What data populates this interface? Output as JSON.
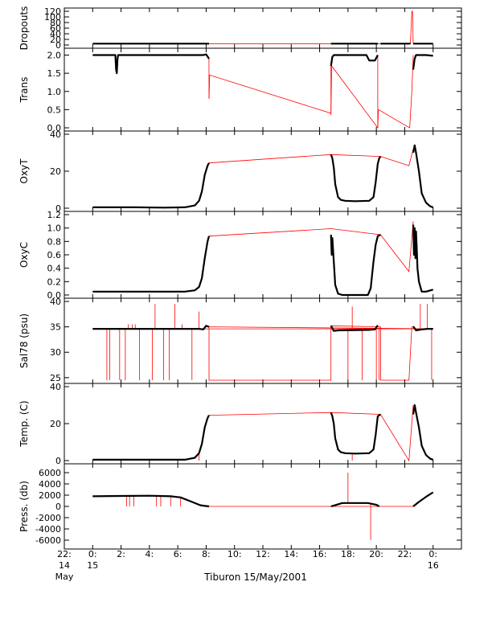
{
  "chart_data": {
    "type": "line",
    "xlabel": "Tiburon 15/May/2001",
    "x_unit": "hours relative to 00:00 15 May 2001",
    "x_range": [
      -2,
      26
    ],
    "x_ticks": [
      {
        "x": -2,
        "label": [
          "22:",
          "14",
          "May"
        ]
      },
      {
        "x": 0,
        "label": [
          "0:",
          "15"
        ]
      },
      {
        "x": 2,
        "label": [
          "2:"
        ]
      },
      {
        "x": 4,
        "label": [
          "4:"
        ]
      },
      {
        "x": 6,
        "label": [
          "6:"
        ]
      },
      {
        "x": 8,
        "label": [
          "8:"
        ]
      },
      {
        "x": 10,
        "label": [
          "10:"
        ]
      },
      {
        "x": 12,
        "label": [
          "12:"
        ]
      },
      {
        "x": 14,
        "label": [
          "14:"
        ]
      },
      {
        "x": 16,
        "label": [
          "16:"
        ]
      },
      {
        "x": 18,
        "label": [
          "18:"
        ]
      },
      {
        "x": 20,
        "label": [
          "20:"
        ]
      },
      {
        "x": 22,
        "label": [
          "22:"
        ]
      },
      {
        "x": 24,
        "label": [
          "0:",
          "16"
        ]
      }
    ],
    "colors": {
      "data": "#000000",
      "gap_lines": "#ff0000"
    },
    "panels": [
      {
        "name": "dropouts",
        "ylabel": "Dropouts",
        "ylim": [
          0,
          120
        ],
        "ytick_labels": [
          "0",
          "20",
          "40",
          "60",
          "80",
          "100",
          "120"
        ],
        "segments": [
          {
            "x": [
              0,
              8.2
            ],
            "y": [
              5,
              5
            ]
          },
          {
            "x": [
              16.8,
              20.1
            ],
            "y": [
              5,
              5
            ]
          },
          {
            "x": [
              20.3,
              22.4
            ],
            "y": [
              5,
              5
            ]
          },
          {
            "x": [
              22.6,
              24
            ],
            "y": [
              5,
              5
            ]
          }
        ],
        "red_path": {
          "x": [
            8.2,
            16.8,
            20.1,
            20.3,
            22.4,
            22.5,
            22.55,
            22.6
          ],
          "y": [
            5,
            5,
            5,
            5,
            5,
            120,
            120,
            5
          ]
        },
        "spikes": []
      },
      {
        "name": "trans",
        "ylabel": "Trans",
        "ylim": [
          0,
          2.1
        ],
        "ytick_labels": [
          "0.0",
          "0.5",
          "1.0",
          "1.5",
          "2.0"
        ],
        "segments": [
          {
            "x": [
              0,
              1.6,
              1.65,
              1.7,
              1.75,
              1.8,
              7.8,
              8.0,
              8.2
            ],
            "y": [
              2.0,
              2.0,
              1.6,
              1.5,
              1.9,
              2.0,
              2.0,
              2.02,
              1.9
            ]
          },
          {
            "x": [
              16.8,
              16.9,
              17.0,
              19.3,
              19.5,
              19.9,
              20.1
            ],
            "y": [
              1.7,
              1.95,
              2.0,
              2.0,
              1.85,
              1.85,
              2.0
            ]
          },
          {
            "x": [
              22.6,
              22.7,
              22.8,
              23.5,
              24.0
            ],
            "y": [
              1.6,
              1.9,
              2.0,
              2.0,
              1.98
            ]
          }
        ],
        "red_path": {
          "x": [
            8.2,
            8.25,
            16.8,
            16.85,
            20.1,
            20.15,
            22.35,
            22.5,
            22.6
          ],
          "y": [
            0.8,
            1.45,
            0.4,
            1.7,
            0.0,
            0.5,
            -0.1,
            1.0,
            2.0
          ]
        },
        "spikes": [
          {
            "x": 8.2,
            "y0": 1.9,
            "y1": 0.8
          },
          {
            "x": 16.8,
            "y0": 1.7,
            "y1": 0.35
          },
          {
            "x": 20.1,
            "y0": 2.0,
            "y1": 0.0
          }
        ]
      },
      {
        "name": "oxyt",
        "ylabel": "OxyT",
        "ylim": [
          0,
          40
        ],
        "ytick_labels": [
          "0",
          "20",
          "40"
        ],
        "segments": [
          {
            "x": [
              0,
              3,
              5,
              6.5,
              7.2,
              7.5,
              7.7,
              7.9,
              8.1,
              8.2
            ],
            "y": [
              0.5,
              0.5,
              0.3,
              0.5,
              1.5,
              4,
              9,
              18,
              23,
              24.5
            ]
          },
          {
            "x": [
              16.8,
              16.9,
              17.0,
              17.1,
              17.3,
              17.5,
              17.8,
              18.5,
              19.5,
              19.8,
              19.95,
              20.1,
              20.2,
              20.3
            ],
            "y": [
              29,
              27,
              22,
              13,
              6,
              4.5,
              4,
              3.8,
              4,
              6,
              14,
              24,
              27,
              28
            ]
          },
          {
            "x": [
              22.6,
              22.7,
              22.8,
              23.0,
              23.2,
              23.5,
              23.8,
              24.0
            ],
            "y": [
              30,
              34,
              30,
              20,
              8,
              3,
              1,
              0.5
            ]
          }
        ],
        "red_path": {
          "x": [
            8.2,
            16.8,
            20.3,
            22.3,
            22.6
          ],
          "y": [
            24.5,
            29,
            28,
            23,
            32
          ]
        },
        "spikes": []
      },
      {
        "name": "oxyc",
        "ylabel": "OxyC",
        "ylim": [
          0,
          1.2
        ],
        "ytick_labels": [
          "0.0",
          "0.2",
          "0.4",
          "0.6",
          "0.8",
          "1.0",
          "1.2"
        ],
        "segments": [
          {
            "x": [
              0,
              3,
              6.5,
              7.2,
              7.5,
              7.7,
              7.9,
              8.1,
              8.2
            ],
            "y": [
              0.05,
              0.05,
              0.05,
              0.07,
              0.12,
              0.25,
              0.55,
              0.8,
              0.88
            ]
          },
          {
            "x": [
              16.8,
              16.85,
              16.9,
              17.0,
              17.1,
              17.3,
              17.6,
              19.4,
              19.6,
              19.8,
              19.95,
              20.1,
              20.3
            ],
            "y": [
              0.9,
              0.6,
              0.85,
              0.5,
              0.15,
              0.02,
              0.0,
              0.0,
              0.1,
              0.5,
              0.75,
              0.88,
              0.9
            ]
          },
          {
            "x": [
              22.6,
              22.65,
              22.7,
              22.75,
              22.8,
              22.85,
              22.9,
              23.0,
              23.2,
              23.5,
              24.0
            ],
            "y": [
              1.05,
              0.6,
              1.0,
              0.55,
              0.95,
              0.7,
              0.4,
              0.2,
              0.05,
              0.05,
              0.08
            ]
          }
        ],
        "red_path": {
          "x": [
            8.2,
            16.8,
            20.3,
            22.3,
            22.6
          ],
          "y": [
            0.88,
            0.99,
            0.9,
            0.35,
            1.1
          ]
        },
        "spikes": []
      },
      {
        "name": "sal78",
        "ylabel": "Sal78 (psu)",
        "ylim": [
          24.5,
          40
        ],
        "ytick_labels": [
          "25",
          "30",
          "35",
          "40"
        ],
        "segments": [
          {
            "x": [
              0,
              7.5,
              7.8,
              8.0,
              8.2
            ],
            "y": [
              34.6,
              34.6,
              34.5,
              35.2,
              35.0
            ]
          },
          {
            "x": [
              16.8,
              17.0,
              17.3,
              19.5,
              19.9,
              20.1
            ],
            "y": [
              35.2,
              34.2,
              34.3,
              34.4,
              34.5,
              35.3
            ]
          },
          {
            "x": [
              22.6,
              22.8,
              23.2,
              23.6,
              24.0
            ],
            "y": [
              35.1,
              34.3,
              34.5,
              34.6,
              34.6
            ]
          }
        ],
        "red_path": {
          "x": [
            0,
            24,
            8.2,
            8.2,
            16.8,
            16.8,
            20.3,
            20.3,
            22.3,
            22.5
          ],
          "y": [
            34.6,
            34.6,
            35.0,
            24.5,
            24.5,
            35.2,
            35.0,
            24.5,
            24.5,
            35.1
          ]
        },
        "spikes": [
          {
            "x": 1.0,
            "y0": 34.6,
            "y1": 24.5
          },
          {
            "x": 1.2,
            "y0": 34.6,
            "y1": 24.5
          },
          {
            "x": 1.9,
            "y0": 34.6,
            "y1": 24.5
          },
          {
            "x": 2.3,
            "y0": 34.6,
            "y1": 24.5
          },
          {
            "x": 2.5,
            "y0": 34.6,
            "y1": 35.5
          },
          {
            "x": 2.8,
            "y0": 34.6,
            "y1": 35.5
          },
          {
            "x": 3.0,
            "y0": 34.6,
            "y1": 35.5
          },
          {
            "x": 3.3,
            "y0": 34.6,
            "y1": 24.5
          },
          {
            "x": 4.2,
            "y0": 34.6,
            "y1": 24.5
          },
          {
            "x": 4.4,
            "y0": 34.6,
            "y1": 39.5
          },
          {
            "x": 5.0,
            "y0": 34.6,
            "y1": 24.5
          },
          {
            "x": 5.4,
            "y0": 34.6,
            "y1": 24.5
          },
          {
            "x": 5.8,
            "y0": 34.6,
            "y1": 39.5
          },
          {
            "x": 6.3,
            "y0": 34.6,
            "y1": 35.5
          },
          {
            "x": 7.0,
            "y0": 34.6,
            "y1": 24.5
          },
          {
            "x": 7.5,
            "y0": 34.6,
            "y1": 38.0
          },
          {
            "x": 18.0,
            "y0": 34.3,
            "y1": 24.5
          },
          {
            "x": 18.3,
            "y0": 34.3,
            "y1": 39.0
          },
          {
            "x": 19.0,
            "y0": 34.4,
            "y1": 24.5
          },
          {
            "x": 20.0,
            "y0": 34.5,
            "y1": 24.5
          },
          {
            "x": 20.2,
            "y0": 35.0,
            "y1": 24.5
          },
          {
            "x": 23.1,
            "y0": 34.5,
            "y1": 39.5
          },
          {
            "x": 23.6,
            "y0": 34.6,
            "y1": 39.5
          },
          {
            "x": 23.9,
            "y0": 34.6,
            "y1": 24.5
          }
        ]
      },
      {
        "name": "temp",
        "ylabel": "Temp. (C)",
        "ylim": [
          0,
          40
        ],
        "ytick_labels": [
          "0",
          "20",
          "40"
        ],
        "segments": [
          {
            "x": [
              0,
              3,
              6.5,
              7.2,
              7.5,
              7.7,
              7.9,
              8.1,
              8.2
            ],
            "y": [
              0.5,
              0.5,
              0.5,
              1.5,
              4,
              9,
              18,
              23,
              24.5
            ]
          },
          {
            "x": [
              16.8,
              16.9,
              17.0,
              17.1,
              17.3,
              17.5,
              17.8,
              18.5,
              19.5,
              19.8,
              19.95,
              20.1,
              20.3
            ],
            "y": [
              26,
              24,
              20,
              12,
              6,
              4.5,
              4,
              3.8,
              4,
              6,
              14,
              24,
              25
            ]
          },
          {
            "x": [
              22.6,
              22.7,
              22.8,
              23.0,
              23.2,
              23.5,
              23.8,
              24.0
            ],
            "y": [
              25,
              30,
              26,
              18,
              8,
              3,
              1,
              0.5
            ]
          }
        ],
        "red_path": {
          "x": [
            8.2,
            16.8,
            20.3,
            22.3,
            22.6
          ],
          "y": [
            24.5,
            26,
            25,
            -2,
            30
          ]
        },
        "spikes": [
          {
            "x": 1.7,
            "y0": 0.5,
            "y1": -2.5
          },
          {
            "x": 4.0,
            "y0": 0.5,
            "y1": -2.5
          },
          {
            "x": 7.5,
            "y0": 4,
            "y1": -2.5
          },
          {
            "x": 18.3,
            "y0": 3.8,
            "y1": -2.5
          }
        ]
      },
      {
        "name": "press",
        "ylabel": "Press. (db)",
        "ylim": [
          -7000,
          7000
        ],
        "ytick_labels": [
          "-6000",
          "-4000",
          "-2000",
          "0",
          "2000",
          "4000",
          "6000"
        ],
        "segments": [
          {
            "x": [
              0,
              2,
              4,
              5.5,
              6.2,
              7.0,
              7.6,
              8.2
            ],
            "y": [
              1800,
              1850,
              1900,
              1800,
              1600,
              800,
              200,
              0
            ]
          },
          {
            "x": [
              16.8,
              17.2,
              17.6,
              19.4,
              20.0,
              20.2
            ],
            "y": [
              0,
              300,
              600,
              600,
              300,
              0
            ]
          },
          {
            "x": [
              22.6,
              23.0,
              23.5,
              24.0
            ],
            "y": [
              0,
              800,
              1700,
              2500
            ]
          }
        ],
        "red_path": {
          "x": [
            8.2,
            16.8,
            20.2,
            22.6
          ],
          "y": [
            0,
            0,
            0,
            0
          ]
        },
        "spikes": [
          {
            "x": 2.4,
            "y0": 1850,
            "y1": 0
          },
          {
            "x": 2.6,
            "y0": 1850,
            "y1": 0
          },
          {
            "x": 2.9,
            "y0": 1850,
            "y1": 0
          },
          {
            "x": 4.5,
            "y0": 1900,
            "y1": 0
          },
          {
            "x": 4.8,
            "y0": 1900,
            "y1": 0
          },
          {
            "x": 5.5,
            "y0": 1800,
            "y1": 0
          },
          {
            "x": 6.2,
            "y0": 1600,
            "y1": 0
          },
          {
            "x": 18.0,
            "y0": 600,
            "y1": 6000
          },
          {
            "x": 19.6,
            "y0": 600,
            "y1": -6000
          }
        ]
      }
    ]
  }
}
